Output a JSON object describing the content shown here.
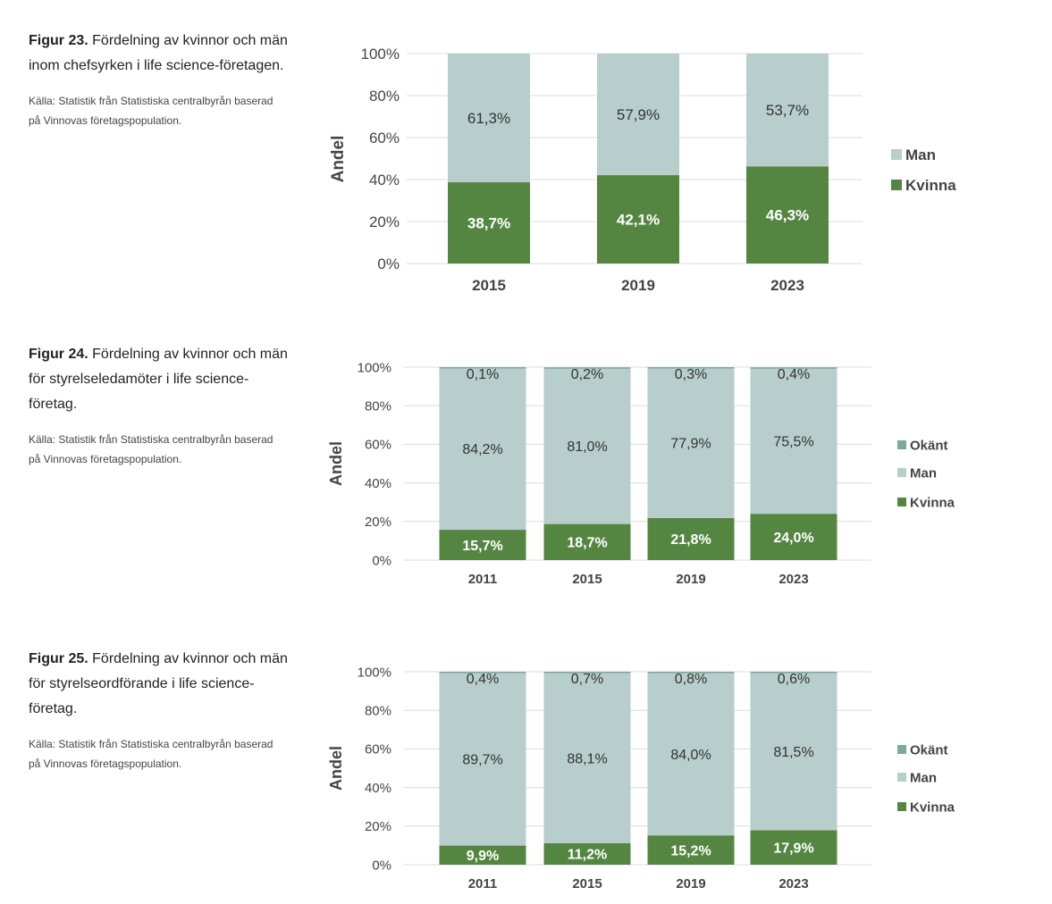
{
  "colors": {
    "kvinna": "#548642",
    "man": "#b7cecd",
    "okant": "#7daa96",
    "grid": "#dcdcdc",
    "tick": "#444444",
    "label_dark": "#333333",
    "label_light": "#ffffff"
  },
  "figures": [
    {
      "label": "Figur 23.",
      "title": "Fördelning av kvinnor och män inom chefsyrken i life science-företagen.",
      "source": "Källa: Statistik från Statistiska centralbyrån baserad på Vinnovas företagspopulation."
    },
    {
      "label": "Figur 24.",
      "title": "Fördelning av kvinnor och män för styrelseledamöter i life science-företag.",
      "source": "Källa: Statistik från Statistiska centralbyrån baserad på Vinnovas företagspopulation."
    },
    {
      "label": "Figur 25.",
      "title": "Fördelning av kvinnor och män för styrelseordförande i life science-företag.",
      "source": "Källa: Statistik från Statistiska centralbyrån baserad på Vinnovas företagspopulation."
    }
  ],
  "chart_data": [
    {
      "type": "bar",
      "stacked": true,
      "title": "Figur 23. Fördelning av kvinnor och män inom chefsyrken i life science-företagen.",
      "xlabel": "",
      "ylabel": "Andel",
      "ylim": [
        0,
        100
      ],
      "yticks": [
        "0%",
        "20%",
        "40%",
        "60%",
        "80%",
        "100%"
      ],
      "categories": [
        "2015",
        "2019",
        "2023"
      ],
      "series": [
        {
          "name": "Kvinna",
          "values": [
            38.7,
            42.1,
            46.3
          ],
          "labels": [
            "38,7%",
            "42,1%",
            "46,3%"
          ]
        },
        {
          "name": "Man",
          "values": [
            61.3,
            57.9,
            53.7
          ],
          "labels": [
            "61,3%",
            "57,9%",
            "53,7%"
          ]
        }
      ],
      "legend": [
        "Man",
        "Kvinna"
      ],
      "legend_position": "right",
      "grid": true
    },
    {
      "type": "bar",
      "stacked": true,
      "title": "Figur 24. Fördelning av kvinnor och män för styrelseledamöter i life science-företag.",
      "xlabel": "",
      "ylabel": "Andel",
      "ylim": [
        0,
        100
      ],
      "yticks": [
        "0%",
        "20%",
        "40%",
        "60%",
        "80%",
        "100%"
      ],
      "categories": [
        "2011",
        "2015",
        "2019",
        "2023"
      ],
      "series": [
        {
          "name": "Kvinna",
          "values": [
            15.7,
            18.7,
            21.8,
            24.0
          ],
          "labels": [
            "15,7%",
            "18,7%",
            "21,8%",
            "24,0%"
          ]
        },
        {
          "name": "Man",
          "values": [
            84.2,
            81.0,
            77.9,
            75.5
          ],
          "labels": [
            "84,2%",
            "81,0%",
            "77,9%",
            "75,5%"
          ]
        },
        {
          "name": "Okänt",
          "values": [
            0.1,
            0.2,
            0.3,
            0.4
          ],
          "labels": [
            "0,1%",
            "0,2%",
            "0,3%",
            "0,4%"
          ]
        }
      ],
      "legend": [
        "Okänt",
        "Man",
        "Kvinna"
      ],
      "legend_position": "right",
      "grid": true
    },
    {
      "type": "bar",
      "stacked": true,
      "title": "Figur 25. Fördelning av kvinnor och män för styrelseordförande i life science-företag.",
      "xlabel": "",
      "ylabel": "Andel",
      "ylim": [
        0,
        100
      ],
      "yticks": [
        "0%",
        "20%",
        "40%",
        "60%",
        "80%",
        "100%"
      ],
      "categories": [
        "2011",
        "2015",
        "2019",
        "2023"
      ],
      "series": [
        {
          "name": "Kvinna",
          "values": [
            9.9,
            11.2,
            15.2,
            17.9
          ],
          "labels": [
            "9,9%",
            "11,2%",
            "15,2%",
            "17,9%"
          ]
        },
        {
          "name": "Man",
          "values": [
            89.7,
            88.1,
            84.0,
            81.5
          ],
          "labels": [
            "89,7%",
            "88,1%",
            "84,0%",
            "81,5%"
          ]
        },
        {
          "name": "Okänt",
          "values": [
            0.4,
            0.7,
            0.8,
            0.6
          ],
          "labels": [
            "0,4%",
            "0,7%",
            "0,8%",
            "0,6%"
          ]
        }
      ],
      "legend": [
        "Okänt",
        "Man",
        "Kvinna"
      ],
      "legend_position": "right",
      "grid": true
    }
  ]
}
